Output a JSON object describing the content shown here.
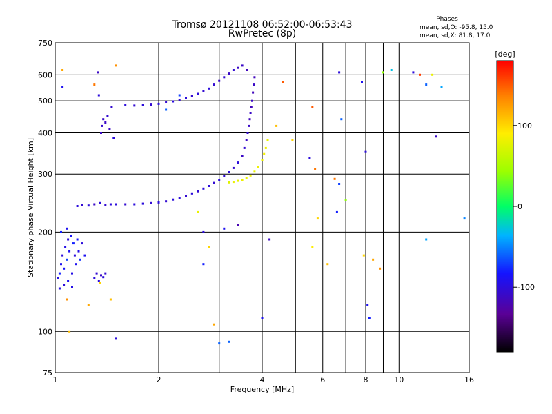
{
  "chart_data": {
    "type": "scatter",
    "title": "Tromsø 20121108 06:52:00-06:53:43",
    "subtitle": "RwPretec (8p)",
    "xlabel": "Frequency [MHz]",
    "ylabel": "Stationary phase Virtual Height [km]",
    "x_scale": "log",
    "y_scale": "log",
    "xlim": [
      1,
      16
    ],
    "ylim": [
      75,
      750
    ],
    "x_ticks": [
      1,
      2,
      4,
      6,
      8,
      10,
      16
    ],
    "y_ticks": [
      75,
      100,
      200,
      300,
      400,
      500,
      600,
      750
    ],
    "grid": true,
    "phases": {
      "heading": "Phases",
      "line_o": "mean, sd,O: -95.8, 15.0",
      "line_x": "mean, sd,X:  81.8, 17.0"
    },
    "colorbar": {
      "label": "[deg]",
      "range": [
        -180,
        180
      ],
      "ticks": [
        100,
        0,
        -100
      ]
    },
    "series": [
      {
        "group": "O-trace",
        "points": [
          [
            1.02,
            145,
            -95
          ],
          [
            1.03,
            150,
            -80
          ],
          [
            1.04,
            160,
            -90
          ],
          [
            1.05,
            170,
            -100
          ],
          [
            1.06,
            155,
            -85
          ],
          [
            1.07,
            180,
            -95
          ],
          [
            1.08,
            165,
            -70
          ],
          [
            1.09,
            190,
            -100
          ],
          [
            1.1,
            175,
            -90
          ],
          [
            1.11,
            195,
            -85
          ],
          [
            1.12,
            150,
            -95
          ],
          [
            1.13,
            185,
            -80
          ],
          [
            1.14,
            170,
            -100
          ],
          [
            1.15,
            160,
            -90
          ],
          [
            1.16,
            190,
            -85
          ],
          [
            1.17,
            175,
            -95
          ],
          [
            1.18,
            165,
            -75
          ],
          [
            1.2,
            185,
            -100
          ],
          [
            1.22,
            170,
            -90
          ],
          [
            1.03,
            135,
            -95
          ],
          [
            1.06,
            138,
            -100
          ],
          [
            1.09,
            142,
            -90
          ],
          [
            1.12,
            136,
            -95
          ],
          [
            1.04,
            200,
            -80
          ],
          [
            1.08,
            205,
            -90
          ],
          [
            1.3,
            145,
            -100
          ],
          [
            1.32,
            150,
            -105
          ],
          [
            1.34,
            142,
            -100
          ],
          [
            1.36,
            148,
            -110
          ],
          [
            1.38,
            146,
            -100
          ],
          [
            1.4,
            150,
            -105
          ],
          [
            1.16,
            240,
            -100
          ],
          [
            1.2,
            242,
            -105
          ],
          [
            1.25,
            241,
            -100
          ],
          [
            1.3,
            243,
            -110
          ],
          [
            1.35,
            245,
            -100
          ],
          [
            1.4,
            242,
            -105
          ],
          [
            1.45,
            243,
            -100
          ],
          [
            1.5,
            243,
            -100
          ],
          [
            1.6,
            243,
            -105
          ],
          [
            1.7,
            243,
            -100
          ],
          [
            1.8,
            244,
            -100
          ],
          [
            1.9,
            245,
            -105
          ],
          [
            2.0,
            246,
            -100
          ],
          [
            2.1,
            248,
            -105
          ],
          [
            2.2,
            251,
            -100
          ],
          [
            2.3,
            254,
            -100
          ],
          [
            2.4,
            258,
            -105
          ],
          [
            2.5,
            262,
            -100
          ],
          [
            2.6,
            266,
            -105
          ],
          [
            2.7,
            271,
            -100
          ],
          [
            2.8,
            276,
            -100
          ],
          [
            2.9,
            282,
            -105
          ],
          [
            3.0,
            288,
            -100
          ],
          [
            3.1,
            296,
            -105
          ],
          [
            3.2,
            304,
            -100
          ],
          [
            3.3,
            313,
            -105
          ],
          [
            3.4,
            325,
            -100
          ],
          [
            3.5,
            340,
            -110
          ],
          [
            3.55,
            360,
            -105
          ],
          [
            3.6,
            380,
            -110
          ],
          [
            3.63,
            400,
            -105
          ],
          [
            3.66,
            420,
            -110
          ],
          [
            3.68,
            440,
            -115
          ],
          [
            3.7,
            460,
            -110
          ],
          [
            3.72,
            480,
            -115
          ],
          [
            3.74,
            500,
            -110
          ],
          [
            3.76,
            530,
            -115
          ],
          [
            3.78,
            560,
            -110
          ],
          [
            3.8,
            590,
            -115
          ],
          [
            3.62,
            620,
            -115
          ],
          [
            1.36,
            400,
            -110
          ],
          [
            1.37,
            420,
            -105
          ],
          [
            1.38,
            440,
            -110
          ],
          [
            1.4,
            430,
            -110
          ],
          [
            1.42,
            450,
            -105
          ],
          [
            1.44,
            410,
            -110
          ],
          [
            1.46,
            480,
            -105
          ],
          [
            1.34,
            520,
            -100
          ],
          [
            1.33,
            610,
            -110
          ],
          [
            1.48,
            385,
            -100
          ],
          [
            1.6,
            485,
            -100
          ],
          [
            1.7,
            484,
            -105
          ],
          [
            1.8,
            485,
            -100
          ],
          [
            1.9,
            487,
            -105
          ],
          [
            2.0,
            490,
            -100
          ],
          [
            2.1,
            495,
            -105
          ],
          [
            2.2,
            498,
            -100
          ],
          [
            2.3,
            503,
            -105
          ],
          [
            2.4,
            510,
            -100
          ],
          [
            2.5,
            518,
            -105
          ],
          [
            2.6,
            525,
            -100
          ],
          [
            2.7,
            535,
            -105
          ],
          [
            2.8,
            545,
            -100
          ],
          [
            2.9,
            560,
            -105
          ],
          [
            3.0,
            575,
            -110
          ],
          [
            3.1,
            590,
            -105
          ],
          [
            3.2,
            605,
            -110
          ],
          [
            3.3,
            620,
            -105
          ],
          [
            3.4,
            630,
            -110
          ],
          [
            3.5,
            640,
            -110
          ]
        ]
      },
      {
        "group": "X-trace",
        "points": [
          [
            3.2,
            283,
            75
          ],
          [
            3.3,
            284,
            80
          ],
          [
            3.4,
            286,
            78
          ],
          [
            3.5,
            288,
            82
          ],
          [
            3.6,
            292,
            80
          ],
          [
            3.7,
            297,
            83
          ],
          [
            3.8,
            305,
            80
          ],
          [
            3.9,
            315,
            82
          ],
          [
            4.0,
            330,
            80
          ],
          [
            4.05,
            345,
            85
          ],
          [
            4.1,
            360,
            82
          ],
          [
            4.15,
            380,
            80
          ]
        ]
      },
      {
        "group": "scattered",
        "points": [
          [
            1.05,
            620,
            120
          ],
          [
            1.05,
            550,
            -90
          ],
          [
            1.3,
            560,
            140
          ],
          [
            1.5,
            640,
            130
          ],
          [
            1.5,
            95,
            -100
          ],
          [
            1.1,
            100,
            110
          ],
          [
            1.08,
            125,
            130
          ],
          [
            1.25,
            120,
            120
          ],
          [
            1.35,
            140,
            100
          ],
          [
            1.45,
            125,
            110
          ],
          [
            2.1,
            470,
            -60
          ],
          [
            2.3,
            520,
            -70
          ],
          [
            2.6,
            230,
            80
          ],
          [
            2.7,
            200,
            -100
          ],
          [
            2.7,
            160,
            -80
          ],
          [
            2.8,
            180,
            100
          ],
          [
            2.9,
            105,
            120
          ],
          [
            3.0,
            92,
            -60
          ],
          [
            3.1,
            205,
            -90
          ],
          [
            3.2,
            93,
            -60
          ],
          [
            3.4,
            210,
            -120
          ],
          [
            4.0,
            110,
            -90
          ],
          [
            4.2,
            190,
            -110
          ],
          [
            4.4,
            420,
            110
          ],
          [
            4.6,
            570,
            150
          ],
          [
            4.9,
            380,
            100
          ],
          [
            5.5,
            335,
            -100
          ],
          [
            5.6,
            480,
            150
          ],
          [
            5.7,
            310,
            140
          ],
          [
            5.8,
            220,
            100
          ],
          [
            5.6,
            180,
            90
          ],
          [
            6.2,
            160,
            110
          ],
          [
            6.5,
            290,
            140
          ],
          [
            6.6,
            230,
            -80
          ],
          [
            6.7,
            280,
            -70
          ],
          [
            6.8,
            440,
            -60
          ],
          [
            7.0,
            250,
            40
          ],
          [
            6.7,
            610,
            -100
          ],
          [
            7.9,
            170,
            100
          ],
          [
            8.0,
            350,
            -100
          ],
          [
            7.8,
            570,
            -90
          ],
          [
            8.1,
            120,
            -90
          ],
          [
            8.2,
            110,
            -80
          ],
          [
            8.4,
            165,
            120
          ],
          [
            8.8,
            155,
            130
          ],
          [
            9.5,
            620,
            -30
          ],
          [
            9.0,
            610,
            40
          ],
          [
            11.0,
            610,
            -100
          ],
          [
            11.5,
            600,
            160
          ],
          [
            12.0,
            560,
            -60
          ],
          [
            12.5,
            600,
            80
          ],
          [
            12.0,
            190,
            -40
          ],
          [
            12.8,
            390,
            -110
          ],
          [
            13.3,
            550,
            -40
          ],
          [
            15.5,
            220,
            -50
          ]
        ]
      }
    ]
  }
}
